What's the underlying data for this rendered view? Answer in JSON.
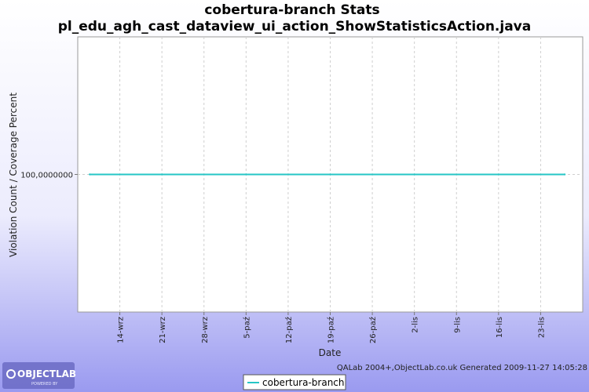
{
  "chart_data": {
    "type": "line",
    "title": "cobertura-branch  Stats",
    "subtitle": "pl_edu_agh_cast_dataview_ui_action_ShowStatisticsAction.java",
    "xlabel": "Date",
    "ylabel": "Violation Count / Coverage Percent",
    "y_tick_labels": [
      "100,0000000"
    ],
    "y_ticks": [
      100
    ],
    "ylim": [
      0,
      200
    ],
    "x_tick_labels": [
      "14-wrz",
      "21-wrz",
      "28-wrz",
      "5-paź",
      "12-paź",
      "19-paź",
      "26-paź",
      "2-lis",
      "9-lis",
      "16-lis",
      "23-lis"
    ],
    "x_range_days": [
      0,
      84
    ],
    "x_tick_days": [
      7,
      14,
      21,
      28,
      35,
      42,
      49,
      56,
      63,
      70,
      77
    ],
    "grid": true,
    "legend_position": "bottom-center",
    "series": [
      {
        "name": "cobertura-branch",
        "color": "#26c6c6",
        "points": [
          {
            "x_day": 2,
            "y": 100
          },
          {
            "x_day": 14,
            "y": 100
          },
          {
            "x_day": 28,
            "y": 100
          },
          {
            "x_day": 42,
            "y": 100
          },
          {
            "x_day": 56,
            "y": 100
          },
          {
            "x_day": 70,
            "y": 100
          },
          {
            "x_day": 81,
            "y": 100
          }
        ]
      }
    ]
  },
  "footer": {
    "credit": "QALab 2004+,ObjectLab.co.uk Generated 2009-11-27 14:05:28"
  },
  "logo": {
    "name": "OBJECTLAB",
    "tagline": "POWERED BY"
  },
  "colors": {
    "background_top": "#ffffff",
    "background_bottom": "#9a9af0",
    "plot_background": "#ffffff",
    "series": "#26c6c6"
  }
}
